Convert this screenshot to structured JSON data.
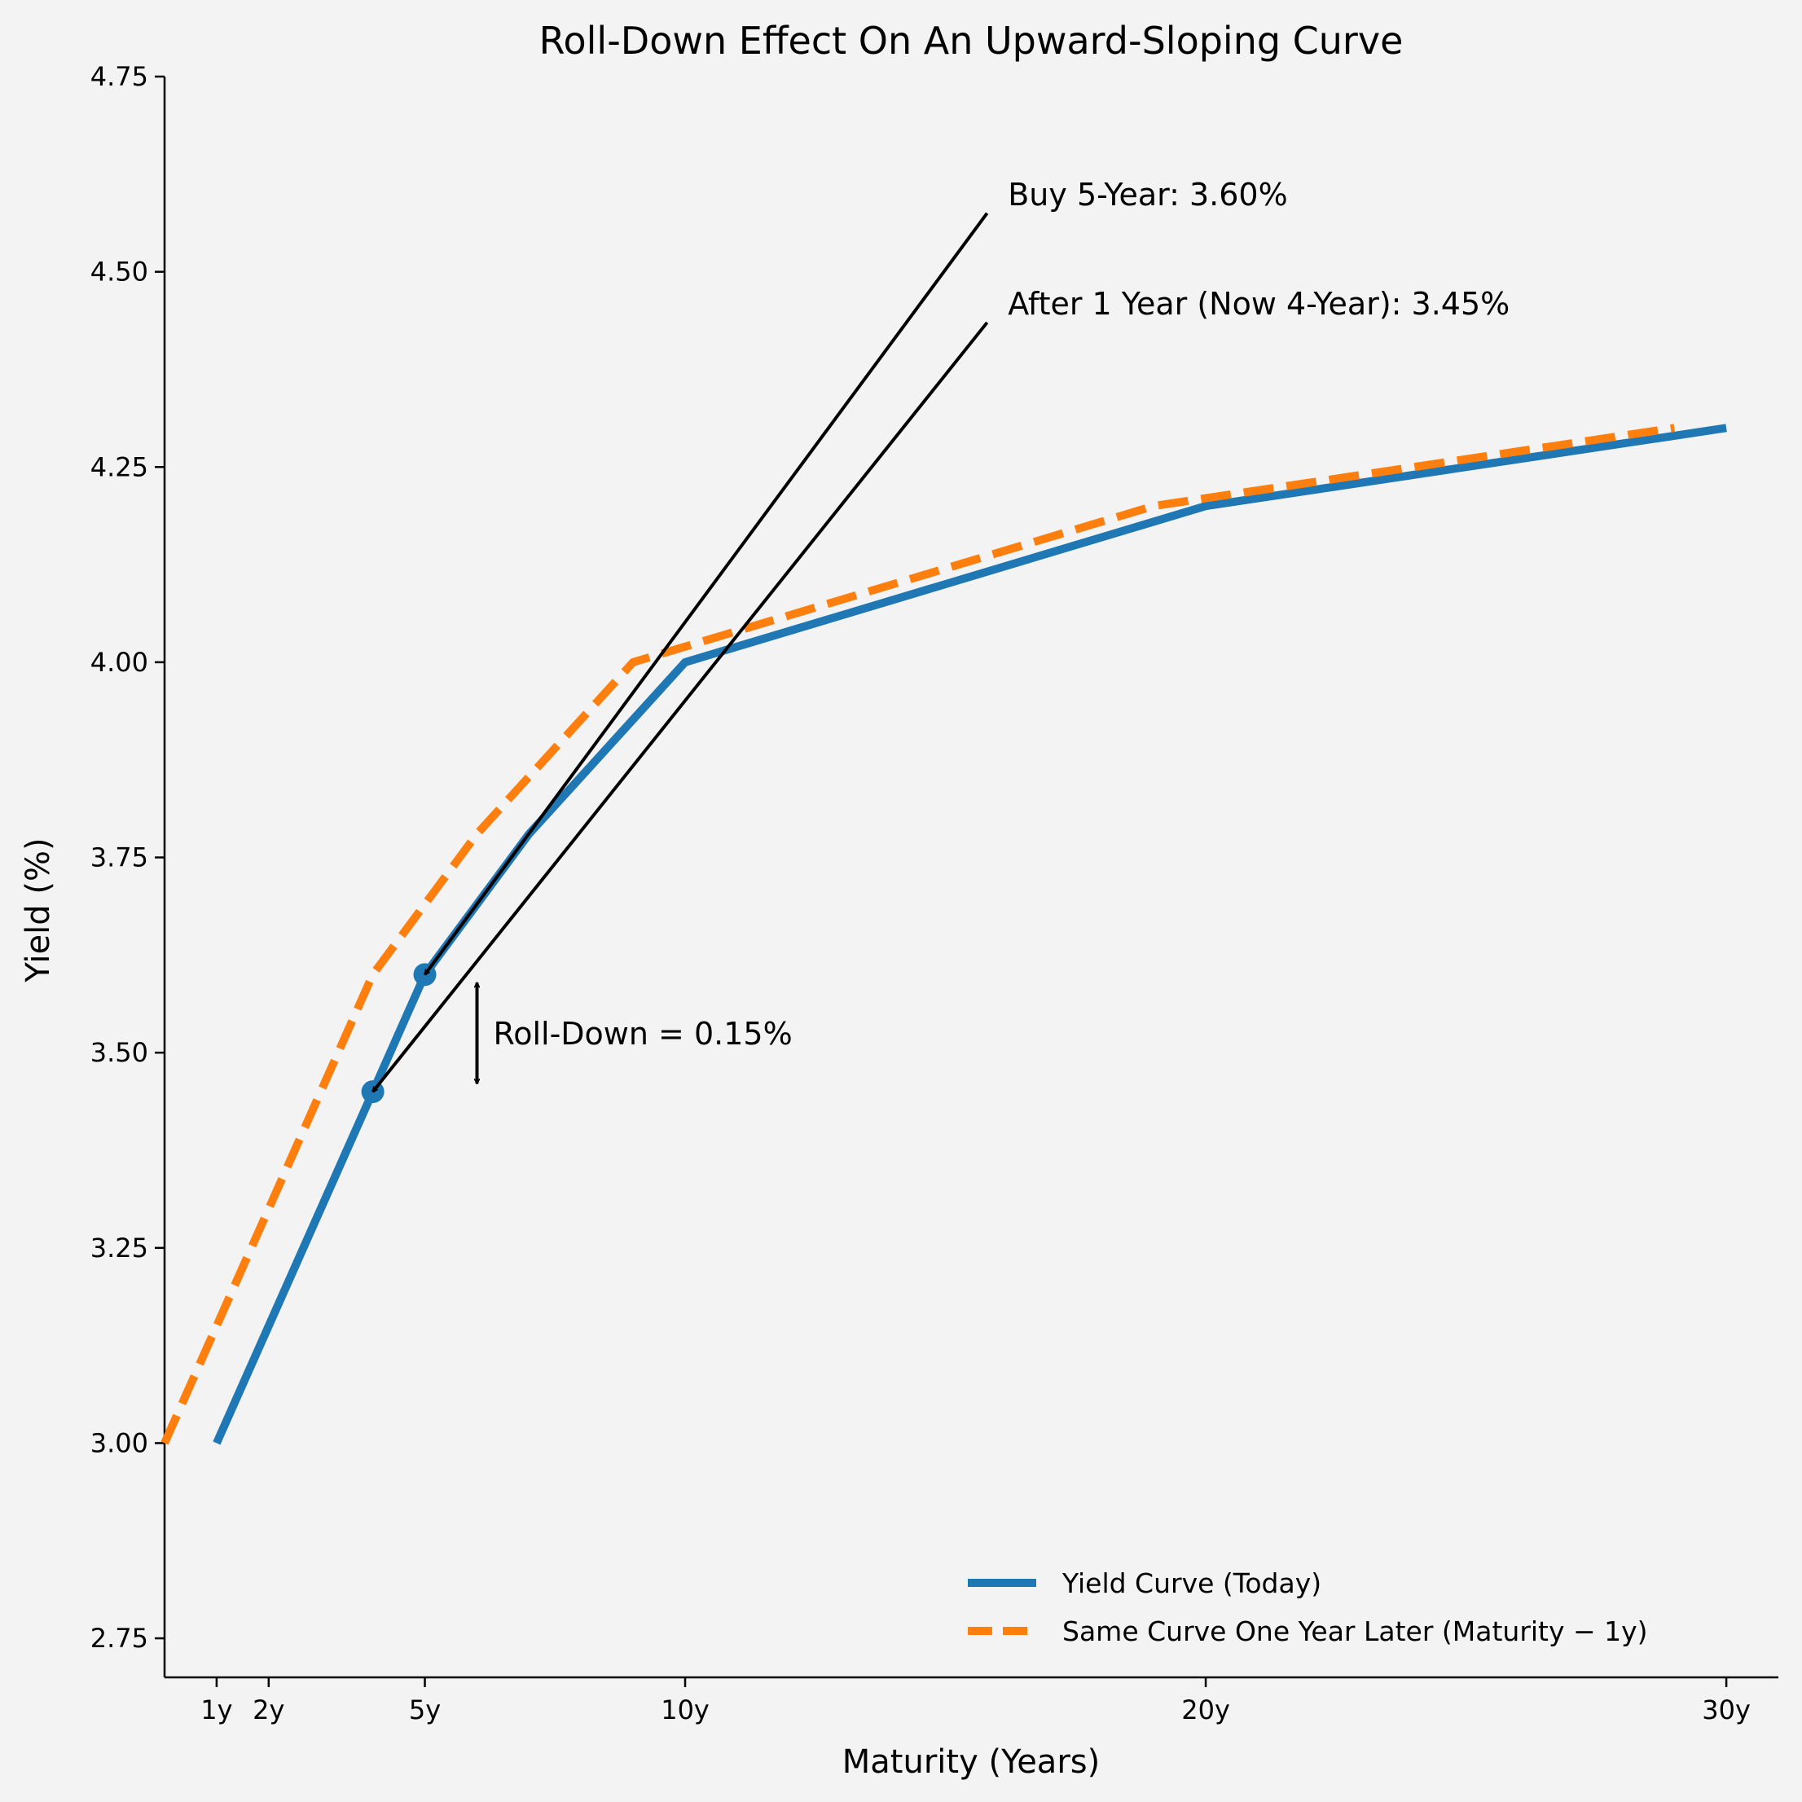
{
  "chart_data": {
    "type": "line",
    "title": "Roll-Down Effect On An Upward-Sloping Curve",
    "xlabel": "Maturity (Years)",
    "ylabel": "Yield (%)",
    "xlim": [
      0,
      31
    ],
    "ylim": [
      2.7,
      4.75
    ],
    "x_ticks": [
      {
        "value": 1,
        "label": "1y"
      },
      {
        "value": 2,
        "label": "2y"
      },
      {
        "value": 5,
        "label": "5y"
      },
      {
        "value": 10,
        "label": "10y"
      },
      {
        "value": 20,
        "label": "20y"
      },
      {
        "value": 30,
        "label": "30y"
      }
    ],
    "y_ticks": [
      {
        "value": 2.75,
        "label": "2.75"
      },
      {
        "value": 3.0,
        "label": "3.00"
      },
      {
        "value": 3.25,
        "label": "3.25"
      },
      {
        "value": 3.5,
        "label": "3.50"
      },
      {
        "value": 3.75,
        "label": "3.75"
      },
      {
        "value": 4.0,
        "label": "4.00"
      },
      {
        "value": 4.25,
        "label": "4.25"
      },
      {
        "value": 4.5,
        "label": "4.50"
      },
      {
        "value": 4.75,
        "label": "4.75"
      }
    ],
    "series": [
      {
        "name": "Yield Curve (Today)",
        "style": "solid",
        "color": "#1f77b4",
        "x": [
          1,
          2,
          3,
          4,
          5,
          7,
          10,
          20,
          30
        ],
        "y": [
          3.0,
          3.15,
          3.3,
          3.45,
          3.6,
          3.78,
          4.0,
          4.2,
          4.3
        ]
      },
      {
        "name": "Same Curve One Year Later (Maturity − 1y)",
        "style": "dashed",
        "color": "#ff7f0e",
        "x": [
          0,
          1,
          2,
          3,
          4,
          6,
          9,
          19,
          29
        ],
        "y": [
          3.0,
          3.15,
          3.3,
          3.45,
          3.6,
          3.78,
          4.0,
          4.2,
          4.3
        ]
      }
    ],
    "markers": [
      {
        "x": 5,
        "y": 3.6
      },
      {
        "x": 4,
        "y": 3.45
      }
    ],
    "annotations": [
      {
        "text": "Buy 5-Year: 3.60%",
        "x": 16.2,
        "y": 4.6,
        "arrow_from": [
          15.8,
          4.575
        ],
        "arrow_to": [
          5,
          3.6
        ]
      },
      {
        "text": "After 1 Year (Now 4-Year): 3.45%",
        "x": 16.2,
        "y": 4.46,
        "arrow_from": [
          15.8,
          4.435
        ],
        "arrow_to": [
          4,
          3.45
        ]
      },
      {
        "text": "Roll-Down = 0.15%",
        "x": 5.3,
        "y": 3.525,
        "double_arrow_x": 5,
        "double_arrow_y": [
          3.45,
          3.6
        ]
      }
    ],
    "legend": {
      "position": "bottom-right"
    },
    "grid": false
  }
}
